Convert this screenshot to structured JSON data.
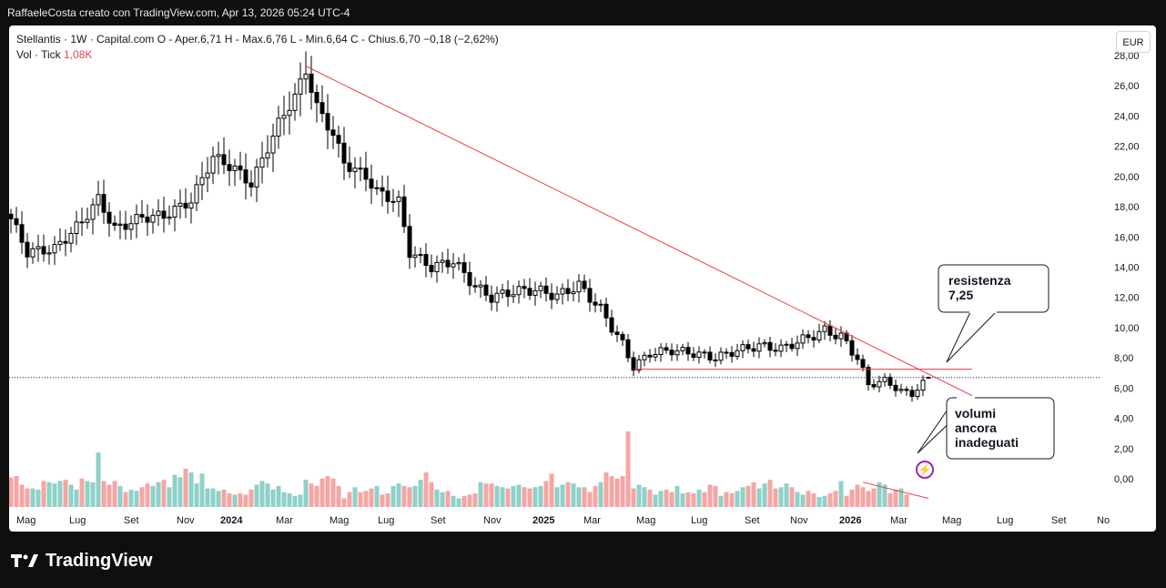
{
  "header": {
    "attribution": "RaffaeleCosta creato con TradingView.com, Apr 13, 2026 05:24 UTC-4"
  },
  "legend": {
    "line1": "Stellantis · 1W · Capital.com  O - Aper.6,71  H - Max.6,76  L - Min.6,64  C - Chius.6,70  −0,18 (−2,62%)",
    "line2_label": "Vol · Tick",
    "line2_value": "1,08K"
  },
  "currency_button": "EUR",
  "footer": {
    "brand": "TradingView"
  },
  "colors": {
    "up": "#26a69a",
    "down": "#ef5350",
    "candle": "#000000",
    "trendline": "#f23645"
  },
  "icons": [
    "tradingview-logo-icon",
    "lightning-icon"
  ],
  "chart_data": {
    "type": "candlestick",
    "title": "",
    "xlabel": "",
    "ylabel": "",
    "ylim": [
      0,
      28
    ],
    "y_ticks": [
      "28,00",
      "26,00",
      "24,00",
      "22,00",
      "20,00",
      "18,00",
      "16,00",
      "14,00",
      "12,00",
      "10,00",
      "8,00",
      "6,00",
      "4,00",
      "2,00",
      "0,00"
    ],
    "x_ticks": [
      {
        "label": "Mag",
        "bold": false
      },
      {
        "label": "Lug",
        "bold": false
      },
      {
        "label": "Set",
        "bold": false
      },
      {
        "label": "Nov",
        "bold": false
      },
      {
        "label": "2024",
        "bold": true
      },
      {
        "label": "Mar",
        "bold": false
      },
      {
        "label": "Mag",
        "bold": false
      },
      {
        "label": "Lug",
        "bold": false
      },
      {
        "label": "Set",
        "bold": false
      },
      {
        "label": "Nov",
        "bold": false
      },
      {
        "label": "2025",
        "bold": true
      },
      {
        "label": "Mar",
        "bold": false
      },
      {
        "label": "Mag",
        "bold": false
      },
      {
        "label": "Lug",
        "bold": false
      },
      {
        "label": "Set",
        "bold": false
      },
      {
        "label": "Nov",
        "bold": false
      },
      {
        "label": "2026",
        "bold": true
      },
      {
        "label": "Mar",
        "bold": false
      },
      {
        "label": "Mag",
        "bold": false
      },
      {
        "label": "Lug",
        "bold": false
      },
      {
        "label": "Set",
        "bold": false
      },
      {
        "label": "No",
        "bold": false
      }
    ],
    "close_anchors": [
      [
        0,
        17.2
      ],
      [
        3,
        15.0
      ],
      [
        8,
        15.2
      ],
      [
        13,
        17.0
      ],
      [
        16,
        18.5
      ],
      [
        19,
        16.5
      ],
      [
        24,
        17.3
      ],
      [
        28,
        17.4
      ],
      [
        33,
        18.4
      ],
      [
        37,
        21.3
      ],
      [
        41,
        20.5
      ],
      [
        44,
        19.5
      ],
      [
        49,
        23.5
      ],
      [
        52,
        25.3
      ],
      [
        54,
        27.0
      ],
      [
        56,
        24.6
      ],
      [
        59,
        22.8
      ],
      [
        61,
        20.9
      ],
      [
        65,
        20.0
      ],
      [
        67,
        19.0
      ],
      [
        71,
        18.3
      ],
      [
        73,
        15.0
      ],
      [
        77,
        14.0
      ],
      [
        81,
        14.4
      ],
      [
        85,
        12.7
      ],
      [
        88,
        12.0
      ],
      [
        92,
        12.4
      ],
      [
        96,
        12.5
      ],
      [
        100,
        12.1
      ],
      [
        104,
        12.8
      ],
      [
        108,
        11.2
      ],
      [
        112,
        8.9
      ],
      [
        114,
        7.4
      ],
      [
        117,
        8.3
      ],
      [
        121,
        8.5
      ],
      [
        125,
        8.3
      ],
      [
        129,
        8.0
      ],
      [
        133,
        8.5
      ],
      [
        137,
        8.8
      ],
      [
        141,
        8.6
      ],
      [
        145,
        9.2
      ],
      [
        149,
        9.8
      ],
      [
        152,
        9.4
      ],
      [
        155,
        8.0
      ],
      [
        157,
        6.2
      ],
      [
        160,
        6.5
      ],
      [
        163,
        5.8
      ],
      [
        165,
        5.6
      ],
      [
        168,
        6.7
      ]
    ],
    "last": {
      "open": 6.71,
      "high": 6.76,
      "low": 6.64,
      "close": 6.7
    },
    "volume_k": [
      2.4,
      2.5,
      1.8,
      1.5,
      1.5,
      1.4,
      2.1,
      2.0,
      1.9,
      2.1,
      2.2,
      1.8,
      1.4,
      2.3,
      2.1,
      2.0,
      4.4,
      2.1,
      1.8,
      2.1,
      1.7,
      1.2,
      1.4,
      1.3,
      1.6,
      1.9,
      1.7,
      2.0,
      2.2,
      1.6,
      2.6,
      2.4,
      3.1,
      2.8,
      1.9,
      2.7,
      1.5,
      1.5,
      1.3,
      1.4,
      1.1,
      1.0,
      1.1,
      1.0,
      1.4,
      1.8,
      2.1,
      1.9,
      1.4,
      1.7,
      1.2,
      1.1,
      0.9,
      1.0,
      2.2,
      1.9,
      1.7,
      2.3,
      2.5,
      2.3,
      1.7,
      0.7,
      1.2,
      1.6,
      1.2,
      1.3,
      1.5,
      1.7,
      1.0,
      1.1,
      1.7,
      1.9,
      1.7,
      1.6,
      1.7,
      2.2,
      2.8,
      2.0,
      1.4,
      1.2,
      1.3,
      0.9,
      0.7,
      0.9,
      1.0,
      1.1,
      2.0,
      1.9,
      1.9,
      1.7,
      1.6,
      1.5,
      1.7,
      1.8,
      1.6,
      1.5,
      1.6,
      1.7,
      2.1,
      2.7,
      1.6,
      1.8,
      2.0,
      1.9,
      1.6,
      1.6,
      1.2,
      1.7,
      2.0,
      2.8,
      2.5,
      2.3,
      2.5,
      6.1,
      1.5,
      1.8,
      1.6,
      1.4,
      1.0,
      1.3,
      1.4,
      1.2,
      1.7,
      1.1,
      1.2,
      1.1,
      1.4,
      1.2,
      1.8,
      1.7,
      0.9,
      1.2,
      1.1,
      1.3,
      1.6,
      1.7,
      2.0,
      1.5,
      1.9,
      2.2,
      1.5,
      1.6,
      1.9,
      1.6,
      1.2,
      1.0,
      1.3,
      1.1,
      0.8,
      0.9,
      1.1,
      1.3,
      2.1,
      0.9,
      1.4,
      1.8,
      1.6,
      1.3,
      1.5,
      2.0,
      1.8,
      1.1,
      1.4,
      1.5,
      1.0
    ],
    "annotations": [
      {
        "type": "trendline",
        "label": "descending-resistance",
        "from": {
          "i": 54,
          "y": 27.3
        },
        "to": {
          "i": 176,
          "y": 5.5
        }
      },
      {
        "type": "hline",
        "label": "support-7.25",
        "y": 7.25,
        "from_i": 114,
        "to_i": 176
      },
      {
        "type": "vol-trendline",
        "from": {
          "i": 156,
          "v": 2.0
        },
        "to": {
          "i": 168,
          "v": 0.7
        }
      },
      {
        "type": "callout",
        "lines": [
          "resistenza",
          "7,25"
        ]
      },
      {
        "type": "callout",
        "lines": [
          "volumi",
          "ancora",
          "inadeguati"
        ]
      }
    ],
    "current_price": 6.7,
    "legend_position": "top-left",
    "grid": false
  }
}
